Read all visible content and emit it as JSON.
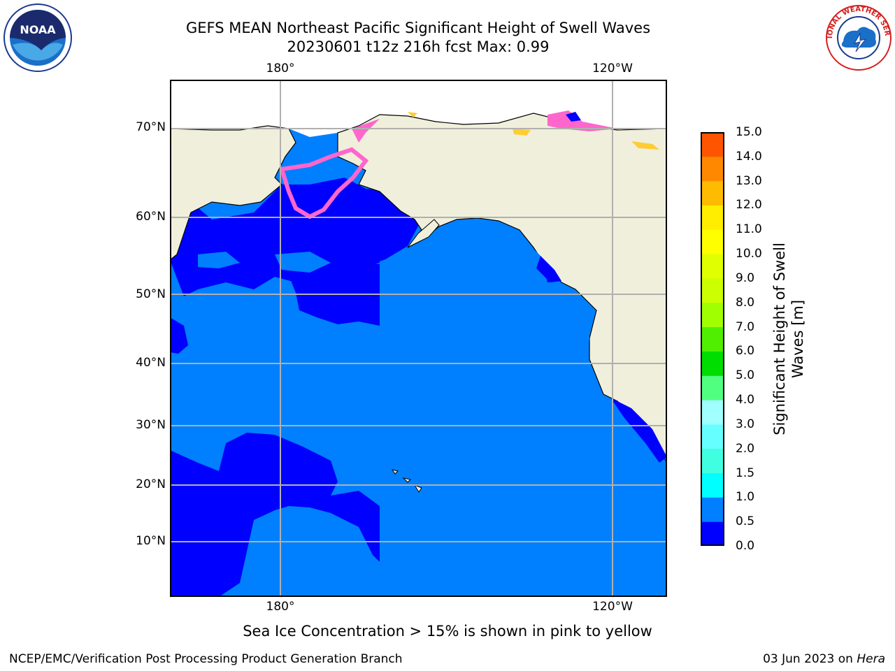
{
  "header": {
    "title": "GEFS MEAN Northeast Pacific Significant Height of Swell Waves",
    "subtitle": "20230601 t12z 216h fcst   Max: 0.99"
  },
  "map": {
    "lon_labels_top": [
      "180°",
      "120°W"
    ],
    "lon_labels_bottom": [
      "180°",
      "120°W"
    ],
    "lat_labels": [
      "70°N",
      "60°N",
      "50°N",
      "40°N",
      "30°N",
      "20°N",
      "10°N"
    ],
    "colors": {
      "land": "#efefdc",
      "band_0_0.5": "#0000ff",
      "band_0.5_1.0": "#0080ff",
      "ice_pink": "#ff66cc",
      "ice_yellow": "#ffcc33",
      "grid": "#b0b0b0"
    }
  },
  "colorbar": {
    "title_line1": "Significant Height of Swell",
    "title_line2": "Waves [m]",
    "ticks": [
      "15.0",
      "14.0",
      "13.0",
      "12.0",
      "11.0",
      "10.0",
      "9.0",
      "8.0",
      "7.0",
      "6.0",
      "5.0",
      "4.0",
      "3.0",
      "2.0",
      "1.5",
      "1.0",
      "0.5",
      "0.0"
    ],
    "colors_bottom_to_top": [
      "#0000ff",
      "#0080ff",
      "#00ffff",
      "#40ffe0",
      "#66ffff",
      "#a0ffff",
      "#50ff80",
      "#00dd00",
      "#50ee00",
      "#a0ff00",
      "#ccff00",
      "#e0ff00",
      "#ffff00",
      "#ffee00",
      "#ffbb00",
      "#ff8800",
      "#ff5500",
      "#ff2200",
      "#ff0000"
    ]
  },
  "caption": "Sea Ice Concentration > 15% is shown in pink to yellow",
  "footer": {
    "left": "NCEP/EMC/Verification Post Processing Product Generation Branch",
    "right_prefix": "03 Jun 2023 on ",
    "right_host": "Hera"
  },
  "logos": {
    "noaa_text": "NOAA",
    "nws_text": "NATIONAL WEATHER SERVICE"
  }
}
